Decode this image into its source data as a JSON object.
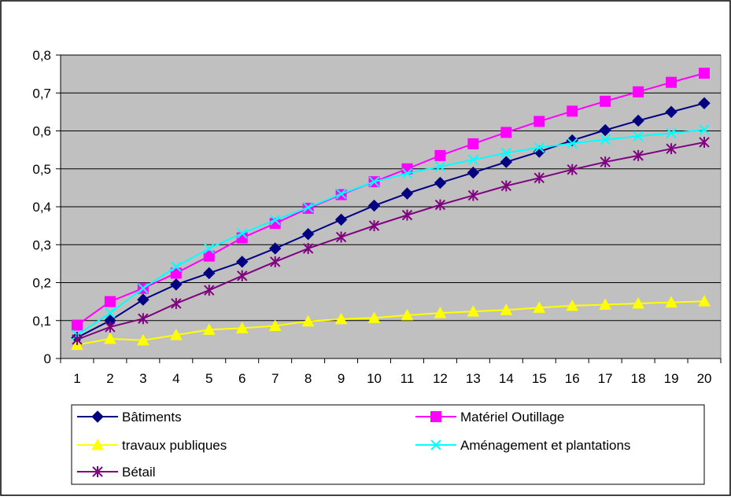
{
  "chart_data": {
    "type": "line",
    "title": "",
    "xlabel": "",
    "ylabel": "",
    "categories": [
      "1",
      "2",
      "3",
      "4",
      "5",
      "6",
      "7",
      "8",
      "9",
      "10",
      "11",
      "12",
      "13",
      "14",
      "15",
      "16",
      "17",
      "18",
      "19",
      "20"
    ],
    "y_ticks": [
      "0",
      "0,1",
      "0,2",
      "0,3",
      "0,4",
      "0,5",
      "0,6",
      "0,7",
      "0,8"
    ],
    "ylim": [
      0,
      0.8
    ],
    "grid": "horizontal",
    "plot_background": "#c0c0c0",
    "legend_position": "bottom",
    "series": [
      {
        "name": "Bâtiments",
        "color": "#000080",
        "marker": "diamond",
        "values": [
          0.055,
          0.1,
          0.155,
          0.195,
          0.225,
          0.255,
          0.29,
          0.328,
          0.366,
          0.403,
          0.435,
          0.463,
          0.49,
          0.518,
          0.545,
          0.575,
          0.602,
          0.627,
          0.65,
          0.673
        ]
      },
      {
        "name": "Matériel Outillage",
        "color": "#ff00ff",
        "marker": "square",
        "values": [
          0.088,
          0.15,
          0.185,
          0.225,
          0.27,
          0.318,
          0.356,
          0.396,
          0.432,
          0.466,
          0.5,
          0.535,
          0.566,
          0.596,
          0.625,
          0.652,
          0.678,
          0.703,
          0.728,
          0.752
        ]
      },
      {
        "name": "travaux publiques",
        "color": "#ffff00",
        "marker": "triangle",
        "values": [
          0.036,
          0.052,
          0.048,
          0.062,
          0.076,
          0.08,
          0.086,
          0.098,
          0.104,
          0.107,
          0.114,
          0.12,
          0.124,
          0.128,
          0.134,
          0.139,
          0.142,
          0.145,
          0.148,
          0.151
        ]
      },
      {
        "name": "Aménagement et plantations",
        "color": "#00ffff",
        "marker": "x",
        "values": [
          0.062,
          0.12,
          0.185,
          0.242,
          0.29,
          0.33,
          0.365,
          0.398,
          0.434,
          0.466,
          0.488,
          0.506,
          0.524,
          0.542,
          0.556,
          0.567,
          0.577,
          0.586,
          0.594,
          0.603
        ]
      },
      {
        "name": "Bétail",
        "color": "#800080",
        "marker": "star",
        "values": [
          0.05,
          0.083,
          0.105,
          0.145,
          0.18,
          0.218,
          0.255,
          0.29,
          0.32,
          0.35,
          0.378,
          0.405,
          0.43,
          0.455,
          0.476,
          0.498,
          0.518,
          0.535,
          0.553,
          0.57
        ]
      }
    ]
  }
}
